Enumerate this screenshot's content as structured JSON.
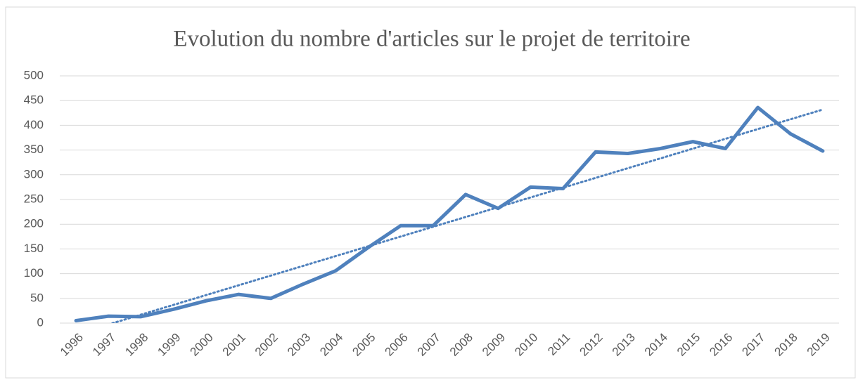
{
  "chart_data": {
    "type": "line",
    "title": "Evolution du nombre d'articles sur le projet de territoire",
    "categories": [
      "1996",
      "1997",
      "1998",
      "1999",
      "2000",
      "2001",
      "2002",
      "2003",
      "2004",
      "2005",
      "2006",
      "2007",
      "2008",
      "2009",
      "2010",
      "2011",
      "2012",
      "2013",
      "2014",
      "2015",
      "2016",
      "2017",
      "2018",
      "2019"
    ],
    "values": [
      5,
      14,
      13,
      28,
      45,
      58,
      50,
      79,
      106,
      153,
      197,
      197,
      260,
      232,
      275,
      272,
      346,
      343,
      353,
      367,
      353,
      436,
      383,
      348
    ],
    "color": "#4f81bd",
    "trendline": "linear",
    "ylim": [
      0,
      500
    ],
    "yticks": [
      0,
      50,
      100,
      150,
      200,
      250,
      300,
      350,
      400,
      450,
      500
    ],
    "grid": true
  }
}
